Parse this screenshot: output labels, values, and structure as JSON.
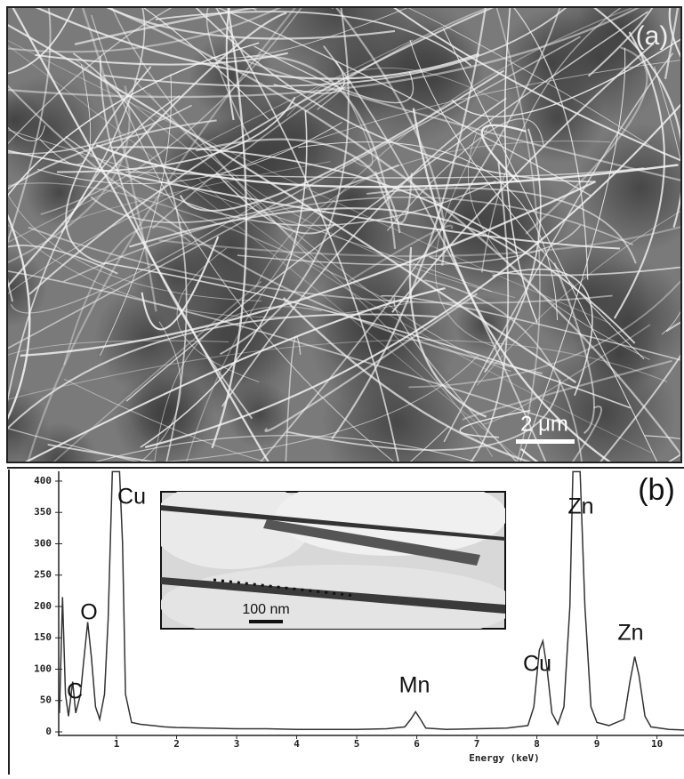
{
  "panel_a": {
    "label": "(a)",
    "scale_bar": "2 μm"
  },
  "chart_data": {
    "type": "line",
    "panel_label": "(b)",
    "xlabel": "Energy (keV)",
    "color": "#333333",
    "annotations": [
      "C",
      "O",
      "Cu",
      "Mn",
      "Cu",
      "Zn",
      "Zn"
    ],
    "inset_scale_bar": "100 nm",
    "x": [
      0.05,
      0.1,
      0.15,
      0.2,
      0.27,
      0.32,
      0.4,
      0.45,
      0.52,
      0.58,
      0.65,
      0.72,
      0.8,
      0.86,
      0.93,
      1.0,
      1.05,
      1.1,
      1.15,
      1.25,
      1.4,
      1.6,
      1.8,
      2.0,
      2.5,
      3.0,
      3.5,
      4.0,
      4.5,
      5.0,
      5.5,
      5.8,
      5.9,
      5.98,
      6.05,
      6.15,
      6.5,
      7.0,
      7.5,
      7.85,
      7.95,
      8.04,
      8.1,
      8.17,
      8.25,
      8.35,
      8.45,
      8.55,
      8.6,
      8.65,
      8.72,
      8.8,
      8.9,
      9.0,
      9.2,
      9.45,
      9.55,
      9.63,
      9.7,
      9.8,
      9.9,
      10.2,
      10.45
    ],
    "values": [
      30,
      215,
      60,
      25,
      80,
      30,
      60,
      110,
      175,
      120,
      40,
      20,
      60,
      180,
      415,
      415,
      415,
      300,
      60,
      15,
      12,
      10,
      8,
      7,
      6,
      5,
      5,
      4,
      4,
      4,
      5,
      8,
      20,
      32,
      22,
      6,
      4,
      5,
      6,
      10,
      40,
      130,
      145,
      100,
      30,
      12,
      40,
      200,
      415,
      415,
      415,
      200,
      40,
      15,
      10,
      20,
      80,
      120,
      90,
      25,
      8,
      4,
      3
    ],
    "xlim": [
      0,
      10.45
    ],
    "ylim": [
      0,
      415
    ],
    "xticks": [
      1,
      2,
      3,
      4,
      5,
      6,
      7,
      8,
      9,
      10
    ],
    "yticks": [
      0,
      50,
      100,
      150,
      200,
      250,
      300,
      350,
      400
    ]
  }
}
